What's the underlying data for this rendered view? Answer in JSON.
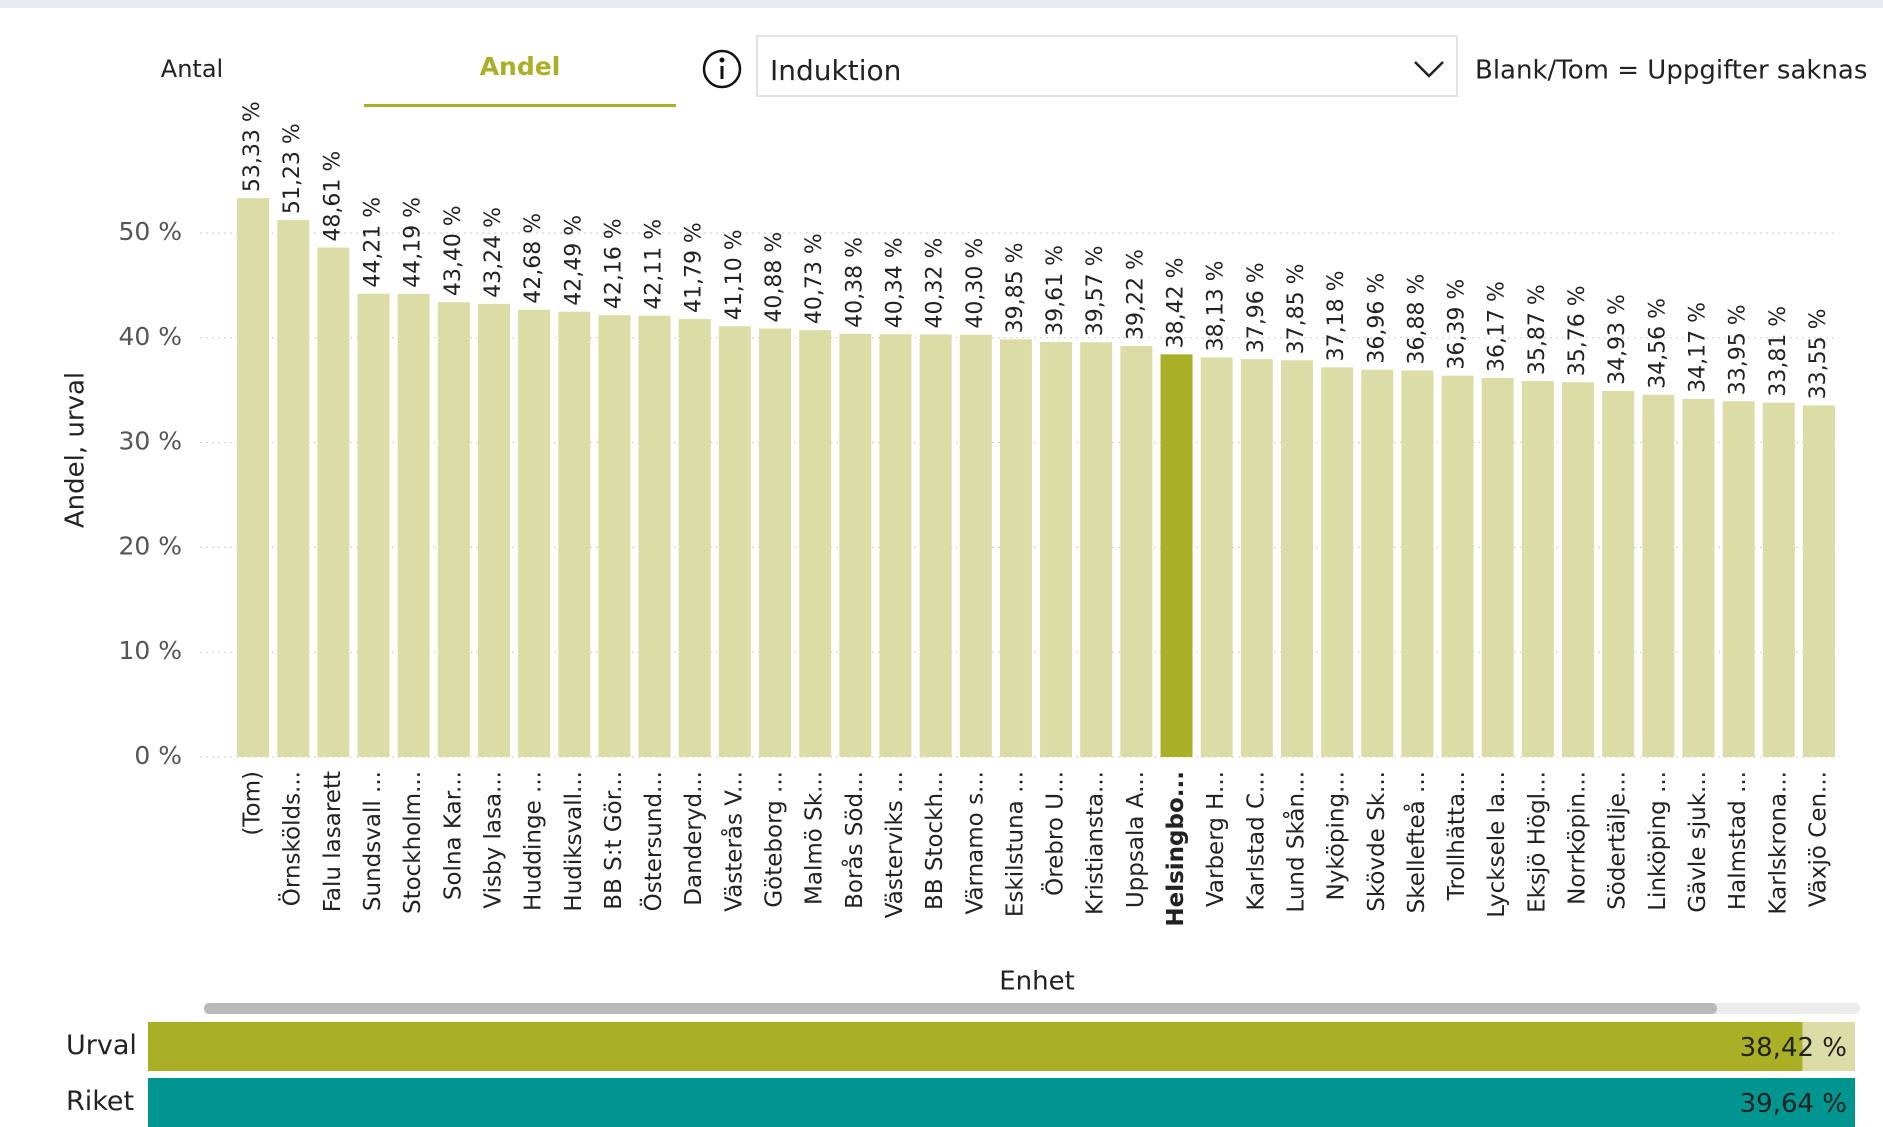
{
  "tabs": [
    "Antal",
    "Andel"
  ],
  "dropdown": "Induktion",
  "note": "Blank/Tom = Uppgifter saknas",
  "chart_data": [
    {
      "type": "bar",
      "ylabel": "Andel, urval",
      "xlabel": "Enhet",
      "categories": [
        "(Tom)",
        "Örnskölds...",
        "Falu lasarett",
        "Sundsvall ...",
        "Stockholm...",
        "Solna Kar...",
        "Visby lasa...",
        "Huddinge ...",
        "Hudiksvall...",
        "BB S:t Gör...",
        "Östersund...",
        "Danderyd...",
        "Västerås V...",
        "Göteborg ...",
        "Malmö Sk...",
        "Borås Söd...",
        "Västerviks ...",
        "BB Stockh...",
        "Värnamo s...",
        "Eskilstuna ...",
        "Örebro U...",
        "Kristiansta...",
        "Uppsala A...",
        "Helsingbo...",
        "Varberg H...",
        "Karlstad C...",
        "Lund Skån...",
        "Nyköping...",
        "Skövde Sk...",
        "Skellefteå ...",
        "Trollhätta...",
        "Lycksele la...",
        "Eksjö Högl...",
        "Norrköpin...",
        "Södertälje...",
        "Linköping ...",
        "Gävle sjuk...",
        "Halmstad ...",
        "Karlskrona...",
        "Växjö Cen..."
      ],
      "values": [
        53.33,
        51.23,
        48.61,
        44.21,
        44.19,
        43.4,
        43.24,
        42.68,
        42.49,
        42.16,
        42.11,
        41.79,
        41.1,
        40.88,
        40.73,
        40.38,
        40.34,
        40.32,
        40.3,
        39.85,
        39.61,
        39.57,
        39.22,
        38.42,
        38.13,
        37.96,
        37.85,
        37.18,
        36.96,
        36.88,
        36.39,
        36.17,
        35.87,
        35.76,
        34.93,
        34.56,
        34.17,
        33.95,
        33.81,
        33.55
      ],
      "value_labels": [
        "53,33 %",
        "51,23 %",
        "48,61 %",
        "44,21 %",
        "44,19 %",
        "43,40 %",
        "43,24 %",
        "42,68 %",
        "42,49 %",
        "42,16 %",
        "42,11 %",
        "41,79 %",
        "41,10 %",
        "40,88 %",
        "40,73 %",
        "40,38 %",
        "40,34 %",
        "40,32 %",
        "40,30 %",
        "39,85 %",
        "39,61 %",
        "39,57 %",
        "39,22 %",
        "38,42 %",
        "38,13 %",
        "37,96 %",
        "37,85 %",
        "37,18 %",
        "36,96 %",
        "36,88 %",
        "36,39 %",
        "36,17 %",
        "35,87 %",
        "35,76 %",
        "34,93 %",
        "34,56 %",
        "34,17 %",
        "33,95 %",
        "33,81 %",
        "33,55 %"
      ],
      "color": "#dcdca6",
      "highlight": 23,
      "highlight_color": "#a9b026",
      "ylim": [
        0,
        50
      ],
      "yticks": [
        {
          "value": 0,
          "label": "0 %"
        },
        {
          "value": 10,
          "label": "10 %"
        },
        {
          "value": 20,
          "label": "20 %"
        },
        {
          "value": 30,
          "label": "30 %"
        },
        {
          "value": 40,
          "label": "40 %"
        },
        {
          "value": 50,
          "label": "50 %"
        }
      ],
      "grid": true
    },
    {
      "type": "hbar",
      "categories": [
        "Urval",
        "Riket"
      ],
      "values": [
        38.42,
        39.64
      ],
      "value_labels": [
        "38,42 %",
        "39,64 %"
      ],
      "colors": [
        "#a9b026",
        "#00968f"
      ]
    }
  ]
}
